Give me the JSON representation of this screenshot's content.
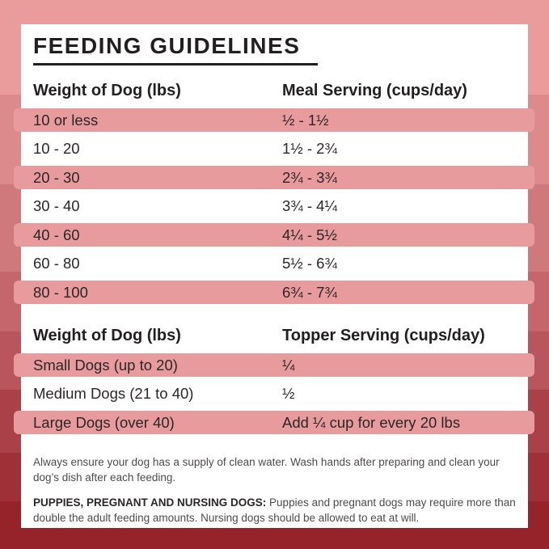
{
  "title": "FEEDING GUIDELINES",
  "colors": {
    "card_background": "#ffffff",
    "row_pink": "#e89b9d",
    "heading_text": "#231f20",
    "body_text": "#2b2627",
    "note_text": "#4f4a4a",
    "background_bands_top_to_bottom": [
      "#ea9b9c",
      "#dc8a8c",
      "#cf797c",
      "#c4666b",
      "#b9555c",
      "#ab4148",
      "#a03038",
      "#96222a"
    ]
  },
  "meal_table": {
    "columns": [
      "Weight of Dog (lbs)",
      "Meal Serving (cups/day)"
    ],
    "rows": [
      {
        "weight": "10 or less",
        "serving": "½ - 1½"
      },
      {
        "weight": "10 - 20",
        "serving": "1½ - 2¾"
      },
      {
        "weight": "20 - 30",
        "serving": "2¾ - 3¾"
      },
      {
        "weight": "30 - 40",
        "serving": "3¾ - 4¼"
      },
      {
        "weight": "40 - 60",
        "serving": "4¼ - 5½"
      },
      {
        "weight": "60 - 80",
        "serving": "5½ - 6¾"
      },
      {
        "weight": "80 - 100",
        "serving": "6¾ - 7¾"
      }
    ]
  },
  "topper_table": {
    "columns": [
      "Weight of Dog (lbs)",
      "Topper Serving (cups/day)"
    ],
    "rows": [
      {
        "weight": "Small Dogs (up to 20)",
        "serving": "¼"
      },
      {
        "weight": "Medium Dogs (21 to 40)",
        "serving": "½"
      },
      {
        "weight": "Large Dogs (over 40)",
        "serving": "Add ¼ cup for every 20 lbs"
      }
    ]
  },
  "notes": {
    "water": "Always ensure your dog has a supply of clean water. Wash hands after preparing and clean your dog’s dish after each feeding.",
    "special_label": "PUPPIES, PREGNANT AND NURSING DOGS:",
    "special_text": "Puppies and pregnant dogs may require more than double the adult feeding amounts. Nursing dogs should be allowed to eat at will."
  }
}
